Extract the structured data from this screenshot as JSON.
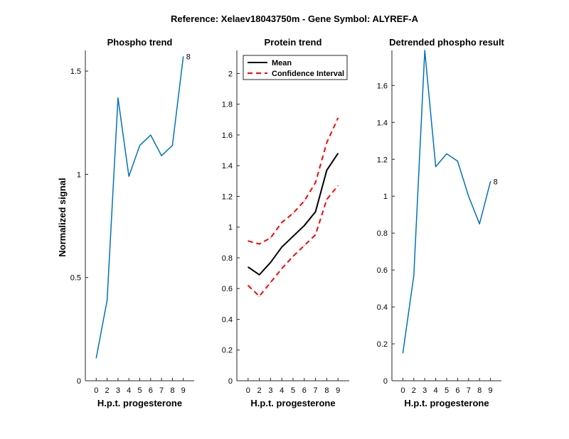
{
  "figure": {
    "title": "Reference:  Xelaev18043750m - Gene Symbol:  ALYREF-A",
    "ylabel": "Normalized signal"
  },
  "chart_data": [
    {
      "type": "line",
      "title": "Phospho trend",
      "xlabel": "H.p.t. progesterone",
      "ylabel": "Normalized signal",
      "x_ticks": [
        "0",
        "2",
        "3",
        "4",
        "5",
        "6",
        "7",
        "8",
        "9"
      ],
      "ylim": [
        0,
        1.6
      ],
      "y_ticks": [
        0,
        0.5,
        1,
        1.5
      ],
      "y_tick_labels": [
        "0",
        "0.5",
        "1",
        "1.5"
      ],
      "series": [
        {
          "values": [
            0.11,
            0.39,
            1.37,
            0.99,
            1.14,
            1.19,
            1.09,
            1.14,
            1.57
          ],
          "color": "#0072bd"
        }
      ],
      "end_label": "8"
    },
    {
      "type": "line",
      "title": "Protein trend",
      "xlabel": "H.p.t. progesterone",
      "x_ticks": [
        "0",
        "2",
        "3",
        "4",
        "5",
        "6",
        "7",
        "8",
        "9"
      ],
      "ylim": [
        0,
        2.15
      ],
      "y_ticks": [
        0,
        0.2,
        0.4,
        0.6,
        0.8,
        1,
        1.2,
        1.4,
        1.6,
        1.8,
        2
      ],
      "y_tick_labels": [
        "0",
        "0.2",
        "0.4",
        "0.6",
        "0.8",
        "1",
        "1.2",
        "1.4",
        "1.6",
        "1.8",
        "2"
      ],
      "series": [
        {
          "name": "Mean",
          "values": [
            0.74,
            0.69,
            0.77,
            0.87,
            0.94,
            1.01,
            1.1,
            1.37,
            1.48
          ],
          "color": "#000000",
          "style": "solid"
        },
        {
          "name": "Confidence Interval",
          "values": [
            0.91,
            0.89,
            0.93,
            1.03,
            1.09,
            1.17,
            1.29,
            1.55,
            1.71
          ],
          "color": "#ff0000",
          "style": "dashed"
        },
        {
          "name": "Confidence Interval (lower)",
          "values": [
            0.62,
            0.55,
            0.64,
            0.73,
            0.81,
            0.88,
            0.95,
            1.18,
            1.27
          ],
          "color": "#ff0000",
          "style": "dashed",
          "legend": false
        }
      ],
      "legend": {
        "position": "top-left",
        "entries": [
          {
            "label": "Mean",
            "color": "#000000",
            "style": "solid"
          },
          {
            "label": "Confidence Interval",
            "color": "#ff0000",
            "style": "dashed"
          }
        ]
      }
    },
    {
      "type": "line",
      "title": "Detrended phospho result",
      "xlabel": "H.p.t. progesterone",
      "x_ticks": [
        "0",
        "2",
        "3",
        "4",
        "5",
        "6",
        "7",
        "8",
        "9"
      ],
      "ylim": [
        0,
        1.79
      ],
      "y_ticks": [
        0,
        0.2,
        0.4,
        0.6,
        0.8,
        1,
        1.2,
        1.4,
        1.6
      ],
      "y_tick_labels": [
        "0",
        "0.2",
        "0.4",
        "0.6",
        "0.8",
        "1",
        "1.2",
        "1.4",
        "1.6"
      ],
      "series": [
        {
          "values": [
            0.15,
            0.57,
            1.79,
            1.16,
            1.23,
            1.19,
            1.0,
            0.85,
            1.08
          ],
          "color": "#0072bd"
        }
      ],
      "end_label": "8"
    }
  ]
}
